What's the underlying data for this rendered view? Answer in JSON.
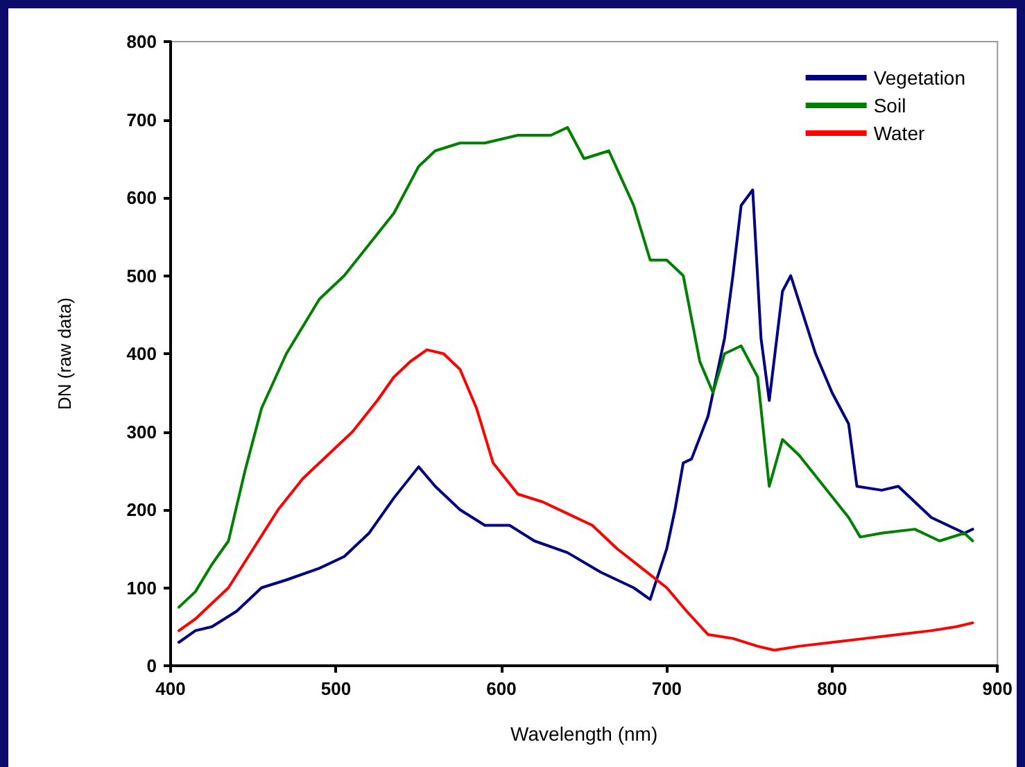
{
  "chart_data": {
    "type": "line",
    "xlabel": "Wavelength (nm)",
    "ylabel": "DN (raw data)",
    "xlim": [
      400,
      900
    ],
    "xticks": [
      400,
      500,
      600,
      700,
      800,
      900
    ],
    "ylim": [
      0,
      800
    ],
    "yticks": [
      0,
      100,
      200,
      300,
      400,
      500,
      600,
      700,
      800
    ],
    "grid": false,
    "legend": "top right",
    "marker": "none",
    "line_style": "solid",
    "series": [
      {
        "name": "Vegetation",
        "color": "#000080",
        "x": [
          405,
          415,
          425,
          440,
          455,
          470,
          490,
          505,
          520,
          535,
          550,
          560,
          575,
          590,
          605,
          620,
          640,
          660,
          680,
          690,
          700,
          705,
          710,
          715,
          725,
          735,
          740,
          745,
          752,
          757,
          762,
          770,
          775,
          790,
          800,
          810,
          815,
          830,
          840,
          860,
          880,
          885
        ],
        "values": [
          30,
          45,
          50,
          70,
          100,
          110,
          125,
          140,
          170,
          215,
          255,
          230,
          200,
          180,
          180,
          160,
          145,
          120,
          100,
          85,
          150,
          200,
          260,
          265,
          320,
          420,
          500,
          590,
          610,
          420,
          340,
          480,
          500,
          400,
          350,
          310,
          230,
          225,
          230,
          190,
          170,
          175
        ]
      },
      {
        "name": "Soil",
        "color": "#008000",
        "x": [
          405,
          415,
          425,
          435,
          445,
          455,
          470,
          490,
          505,
          520,
          535,
          550,
          560,
          575,
          590,
          610,
          630,
          640,
          650,
          665,
          680,
          690,
          700,
          710,
          720,
          728,
          735,
          745,
          755,
          762,
          770,
          780,
          795,
          810,
          817,
          830,
          850,
          865,
          880,
          885
        ],
        "values": [
          75,
          95,
          130,
          160,
          250,
          330,
          400,
          470,
          500,
          540,
          580,
          640,
          660,
          670,
          670,
          680,
          680,
          690,
          650,
          660,
          590,
          520,
          520,
          500,
          390,
          350,
          400,
          410,
          370,
          230,
          290,
          270,
          230,
          190,
          165,
          170,
          175,
          160,
          170,
          160
        ]
      },
      {
        "name": "Water",
        "color": "#ff0000",
        "x": [
          405,
          415,
          425,
          435,
          450,
          465,
          480,
          495,
          510,
          525,
          535,
          545,
          555,
          565,
          575,
          585,
          595,
          610,
          625,
          640,
          655,
          670,
          685,
          700,
          712,
          725,
          740,
          755,
          765,
          780,
          800,
          820,
          840,
          860,
          875,
          885
        ],
        "values": [
          45,
          60,
          80,
          100,
          150,
          200,
          240,
          270,
          300,
          340,
          370,
          390,
          405,
          400,
          380,
          330,
          260,
          220,
          210,
          195,
          180,
          150,
          125,
          100,
          70,
          40,
          35,
          25,
          20,
          25,
          30,
          35,
          40,
          45,
          50,
          55
        ]
      }
    ]
  }
}
